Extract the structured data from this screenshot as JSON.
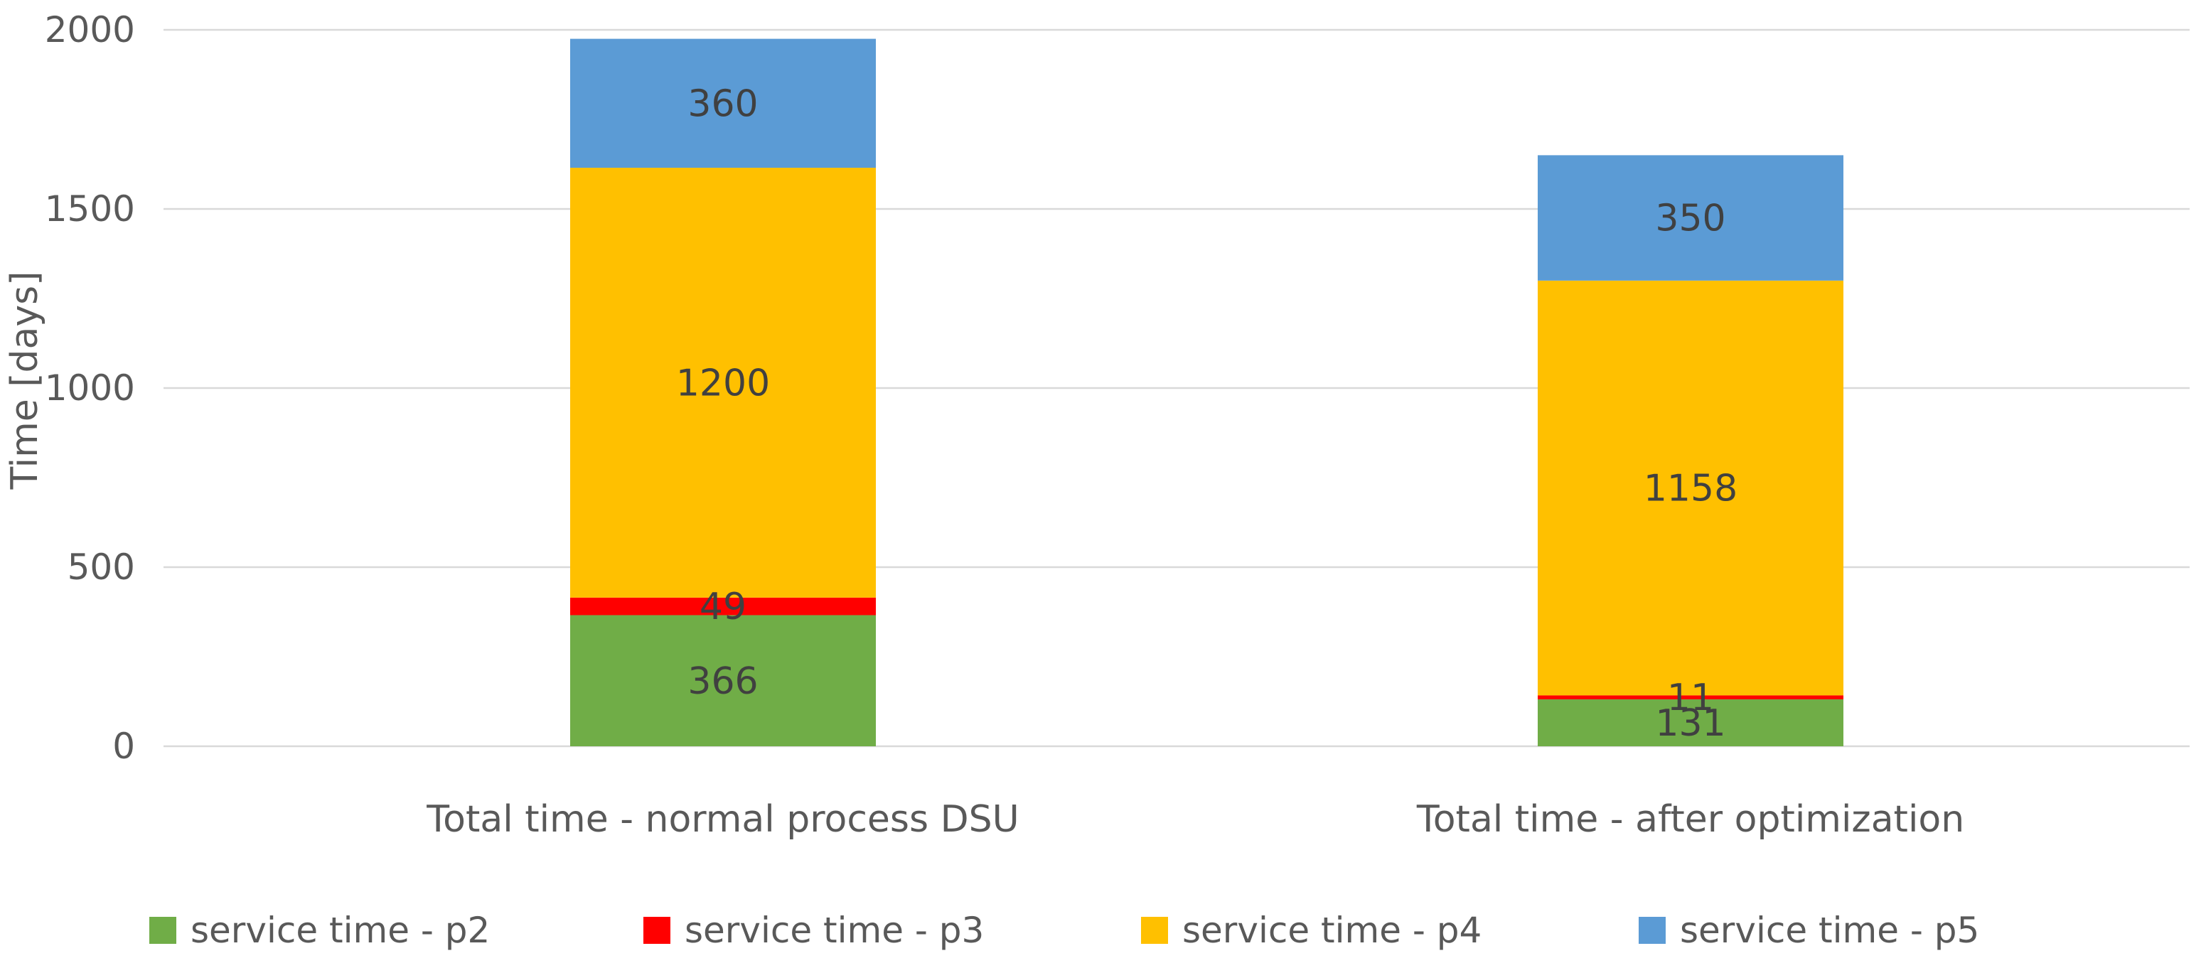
{
  "chart_data": {
    "type": "bar",
    "stacked": true,
    "title": "",
    "xlabel": "",
    "ylabel": "Time [days]",
    "ylim": [
      0,
      2000
    ],
    "yticks": [
      0,
      500,
      1000,
      1500,
      2000
    ],
    "grid": true,
    "legend_position": "bottom",
    "categories": [
      "Total time - normal process DSU",
      "Total time - after optimization"
    ],
    "series": [
      {
        "name": "service time - p2",
        "color": "#70ad47",
        "values": [
          366,
          131
        ]
      },
      {
        "name": "service time - p3",
        "color": "#ff0000",
        "values": [
          49,
          11
        ]
      },
      {
        "name": "service time - p4",
        "color": "#ffc000",
        "values": [
          1200,
          1158
        ]
      },
      {
        "name": "service time - p5",
        "color": "#5b9bd5",
        "values": [
          360,
          350
        ]
      }
    ]
  }
}
